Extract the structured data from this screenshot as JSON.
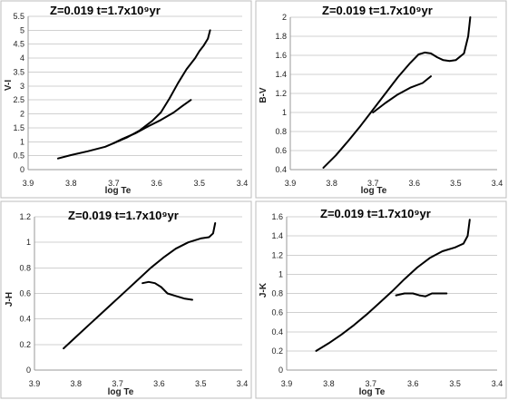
{
  "chart_data": [
    {
      "type": "line",
      "title": "Z=0.019   t=1.7x10⁹yr",
      "xlabel": "log Te",
      "ylabel": "V-I",
      "xlim": [
        3.9,
        3.4
      ],
      "ylim": [
        0,
        5.5
      ],
      "xticks": [
        "3.9",
        "3.8",
        "3.7",
        "3.6",
        "3.5",
        "3.4"
      ],
      "yticks": [
        "0",
        "0.5",
        "1",
        "1.5",
        "2",
        "2.5",
        "3",
        "3.5",
        "4",
        "4.5",
        "5",
        "5.5"
      ],
      "series": [
        {
          "x": [
            3.83,
            3.8,
            3.76,
            3.72,
            3.7,
            3.67,
            3.64,
            3.61,
            3.59,
            3.57,
            3.55,
            3.53,
            3.51,
            3.5,
            3.49,
            3.48,
            3.475
          ],
          "y": [
            0.4,
            0.52,
            0.66,
            0.82,
            0.95,
            1.15,
            1.4,
            1.75,
            2.05,
            2.55,
            3.1,
            3.6,
            4.0,
            4.25,
            4.45,
            4.7,
            5.0
          ]
        },
        {
          "x": [
            3.7,
            3.68,
            3.65,
            3.62,
            3.59,
            3.56,
            3.54,
            3.52
          ],
          "y": [
            0.95,
            1.1,
            1.3,
            1.55,
            1.78,
            2.05,
            2.28,
            2.5
          ]
        }
      ]
    },
    {
      "type": "line",
      "title": "Z=0.019   t=1.7x10⁹yr",
      "xlabel": "log Te",
      "ylabel": "B-V",
      "xlim": [
        3.9,
        3.4
      ],
      "ylim": [
        0.4,
        2.0
      ],
      "xticks": [
        "3.9",
        "3.8",
        "3.7",
        "3.6",
        "3.5",
        "3.4"
      ],
      "yticks": [
        "0.4",
        "0.6",
        "0.8",
        "1",
        "1.2",
        "1.4",
        "1.6",
        "1.8",
        "2"
      ],
      "series": [
        {
          "x": [
            3.82,
            3.79,
            3.76,
            3.73,
            3.7,
            3.67,
            3.64,
            3.61,
            3.59,
            3.575,
            3.56,
            3.545,
            3.53,
            3.515,
            3.5,
            3.48,
            3.47,
            3.465
          ],
          "y": [
            0.42,
            0.55,
            0.7,
            0.86,
            1.03,
            1.2,
            1.37,
            1.52,
            1.61,
            1.63,
            1.62,
            1.58,
            1.55,
            1.54,
            1.55,
            1.62,
            1.8,
            2.0
          ]
        },
        {
          "x": [
            3.7,
            3.67,
            3.64,
            3.61,
            3.58,
            3.56
          ],
          "y": [
            1.0,
            1.1,
            1.19,
            1.26,
            1.31,
            1.38
          ]
        }
      ]
    },
    {
      "type": "line",
      "title": "Z=0.019   t=1.7x10⁹yr",
      "xlabel": "log Te",
      "ylabel": "J-H",
      "xlim": [
        3.9,
        3.4
      ],
      "ylim": [
        0,
        1.2
      ],
      "xticks": [
        "3.9",
        "3.8",
        "3.7",
        "3.6",
        "3.5",
        "3.4"
      ],
      "yticks": [
        "0",
        "0.2",
        "0.4",
        "0.6",
        "0.8",
        "1",
        "1.2"
      ],
      "series": [
        {
          "x": [
            3.83,
            3.8,
            3.77,
            3.74,
            3.71,
            3.68,
            3.65,
            3.62,
            3.59,
            3.56,
            3.53,
            3.5,
            3.48,
            3.47,
            3.465
          ],
          "y": [
            0.17,
            0.26,
            0.35,
            0.44,
            0.53,
            0.62,
            0.71,
            0.8,
            0.88,
            0.95,
            1.0,
            1.03,
            1.04,
            1.07,
            1.15
          ]
        },
        {
          "x": [
            3.64,
            3.625,
            3.61,
            3.595,
            3.58,
            3.56,
            3.54,
            3.52
          ],
          "y": [
            0.68,
            0.69,
            0.68,
            0.65,
            0.6,
            0.58,
            0.56,
            0.55
          ]
        }
      ]
    },
    {
      "type": "line",
      "title": "Z=0.019   t=1.7x10⁹yr",
      "xlabel": "log Te",
      "ylabel": "J-K",
      "xlim": [
        3.9,
        3.4
      ],
      "ylim": [
        0,
        1.6
      ],
      "xticks": [
        "3.9",
        "3.8",
        "3.7",
        "3.6",
        "3.5",
        "3.4"
      ],
      "yticks": [
        "0",
        "0.2",
        "0.4",
        "0.6",
        "0.8",
        "1",
        "1.2",
        "1.4",
        "1.6"
      ],
      "series": [
        {
          "x": [
            3.83,
            3.8,
            3.77,
            3.74,
            3.71,
            3.68,
            3.65,
            3.62,
            3.59,
            3.56,
            3.53,
            3.5,
            3.48,
            3.47,
            3.465
          ],
          "y": [
            0.2,
            0.28,
            0.37,
            0.47,
            0.58,
            0.7,
            0.82,
            0.95,
            1.07,
            1.17,
            1.24,
            1.28,
            1.32,
            1.4,
            1.57
          ]
        },
        {
          "x": [
            3.64,
            3.62,
            3.6,
            3.585,
            3.57,
            3.555,
            3.54,
            3.52
          ],
          "y": [
            0.78,
            0.8,
            0.8,
            0.78,
            0.77,
            0.8,
            0.8,
            0.8
          ]
        }
      ]
    }
  ]
}
